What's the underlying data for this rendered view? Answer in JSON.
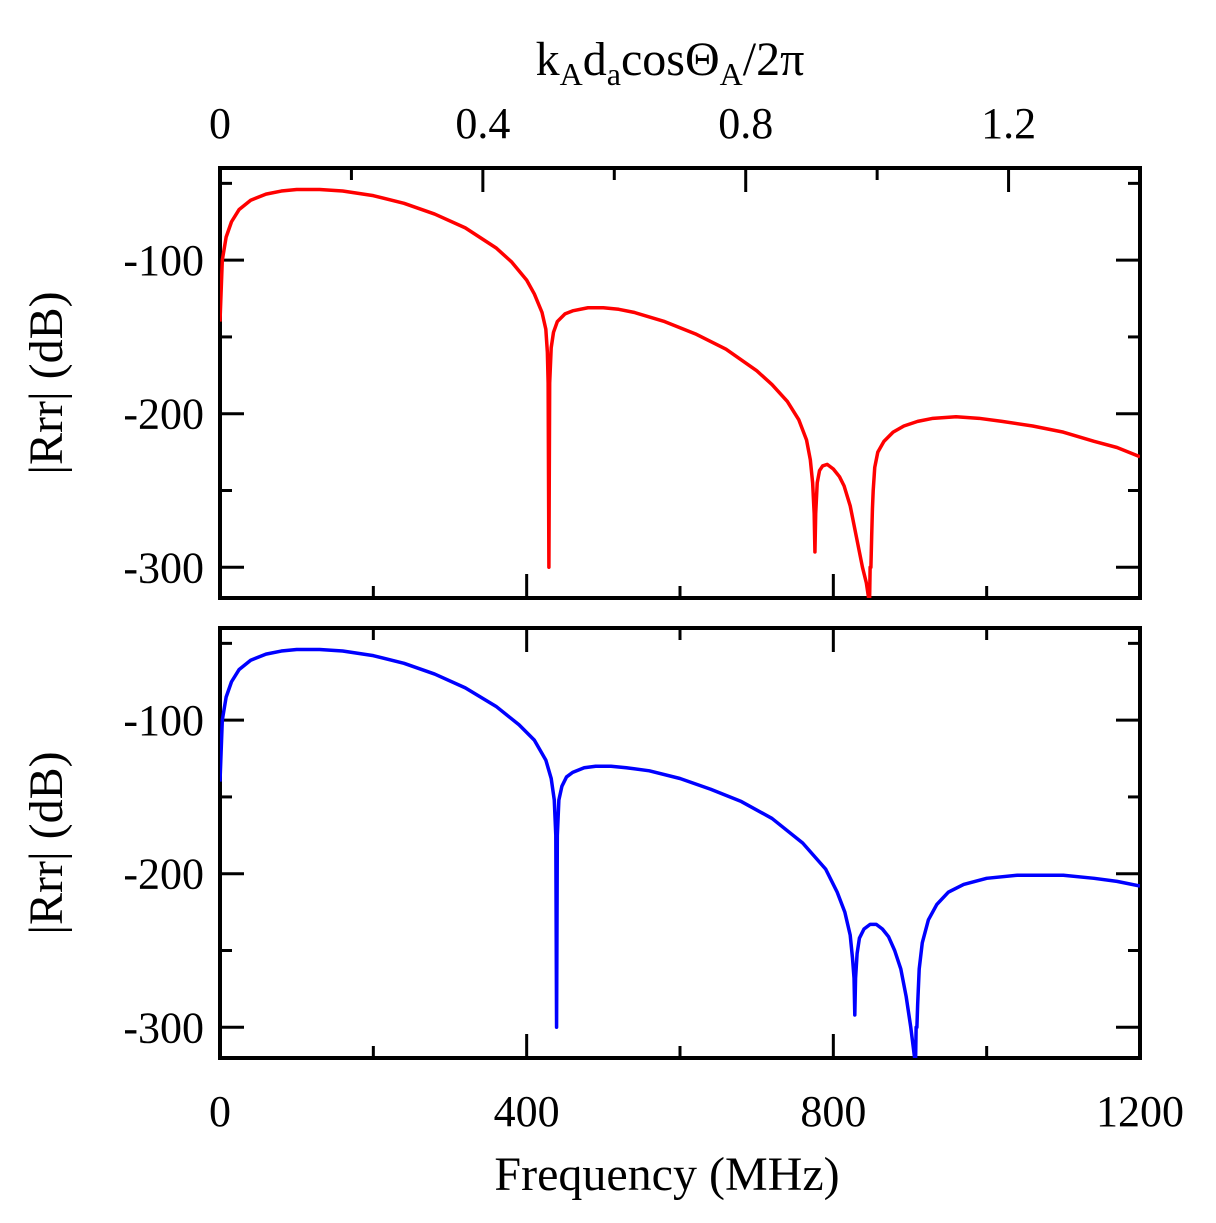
{
  "chart_data": [
    {
      "type": "line",
      "panel": "top",
      "top_axis": {
        "label_parts": [
          "k",
          "A",
          "d",
          "a",
          "cosΘ",
          "A",
          "/2π"
        ],
        "ticks": [
          0,
          0.4,
          0.8,
          1.2
        ],
        "tick_labels": [
          "0",
          "0.4",
          "0.8",
          "1.2"
        ],
        "range": [
          0,
          1.4
        ]
      },
      "xlim": [
        0,
        1200
      ],
      "ylim": [
        -320,
        -40
      ],
      "ylabel": "|Rrr| (dB)",
      "y_ticks": [
        -100,
        -200,
        -300
      ],
      "y_tick_labels": [
        "-100",
        "-200",
        "-300"
      ],
      "series": [
        {
          "name": "top",
          "color": "#ff0000",
          "x": [
            0,
            3,
            8,
            15,
            25,
            40,
            60,
            80,
            100,
            130,
            160,
            200,
            240,
            280,
            320,
            360,
            380,
            400,
            410,
            420,
            425,
            427,
            428,
            429,
            430,
            432,
            435,
            440,
            450,
            460,
            480,
            500,
            520,
            540,
            580,
            620,
            660,
            700,
            720,
            740,
            755,
            765,
            770,
            773,
            775,
            776,
            777,
            779,
            782,
            786,
            792,
            800,
            808,
            814,
            822,
            830,
            838,
            843,
            846,
            847,
            848,
            849,
            850,
            851,
            852,
            854,
            858,
            866,
            878,
            892,
            910,
            930,
            960,
            990,
            1020,
            1060,
            1100,
            1140,
            1170,
            1200
          ],
          "values": [
            -140,
            -100,
            -85,
            -75,
            -67,
            -61,
            -57,
            -55,
            -54,
            -54,
            -55,
            -58,
            -63,
            -70,
            -79,
            -92,
            -101,
            -113,
            -122,
            -134,
            -145,
            -160,
            -180,
            -300,
            -180,
            -157,
            -147,
            -140,
            -135,
            -133,
            -131,
            -131,
            -132,
            -134,
            -140,
            -148,
            -158,
            -172,
            -181,
            -192,
            -204,
            -217,
            -230,
            -245,
            -265,
            -290,
            -265,
            -245,
            -237,
            -234,
            -233,
            -236,
            -241,
            -247,
            -260,
            -280,
            -300,
            -310,
            -320,
            -330,
            -300,
            -300,
            -280,
            -262,
            -250,
            -235,
            -225,
            -218,
            -212,
            -208,
            -205,
            -203,
            -202,
            -203,
            -205,
            -208,
            -212,
            -218,
            -222,
            -228
          ]
        }
      ]
    },
    {
      "type": "line",
      "panel": "bottom",
      "xlabel": "Frequency (MHz)",
      "x_ticks": [
        0,
        400,
        800,
        1200
      ],
      "x_tick_labels": [
        "0",
        "400",
        "800",
        "1200"
      ],
      "xlim": [
        0,
        1200
      ],
      "ylim": [
        -320,
        -40
      ],
      "ylabel": "|Rrr| (dB)",
      "y_ticks": [
        -100,
        -200,
        -300
      ],
      "y_tick_labels": [
        "-100",
        "-200",
        "-300"
      ],
      "series": [
        {
          "name": "bottom",
          "color": "#0000ff",
          "x": [
            0,
            3,
            8,
            15,
            25,
            40,
            60,
            80,
            100,
            130,
            160,
            200,
            240,
            280,
            320,
            360,
            390,
            410,
            425,
            432,
            436,
            438,
            439,
            440,
            442,
            446,
            452,
            460,
            475,
            490,
            510,
            530,
            560,
            600,
            640,
            680,
            720,
            760,
            790,
            805,
            815,
            822,
            825,
            827,
            828,
            829,
            831,
            834,
            840,
            848,
            856,
            864,
            872,
            880,
            888,
            895,
            901,
            904,
            906,
            907,
            908,
            909,
            910,
            912,
            916,
            924,
            935,
            950,
            970,
            1000,
            1040,
            1080,
            1100,
            1140,
            1170,
            1200
          ],
          "values": [
            -140,
            -100,
            -85,
            -75,
            -67,
            -61,
            -57,
            -55,
            -54,
            -54,
            -55,
            -58,
            -63,
            -70,
            -79,
            -91,
            -103,
            -113,
            -126,
            -138,
            -152,
            -175,
            -300,
            -175,
            -152,
            -143,
            -137,
            -134,
            -131,
            -130,
            -130,
            -131,
            -133,
            -138,
            -145,
            -153,
            -164,
            -180,
            -197,
            -212,
            -225,
            -240,
            -255,
            -268,
            -292,
            -268,
            -252,
            -242,
            -236,
            -233,
            -233,
            -236,
            -241,
            -250,
            -262,
            -280,
            -300,
            -312,
            -320,
            -330,
            -300,
            -300,
            -285,
            -262,
            -245,
            -230,
            -220,
            -212,
            -207,
            -203,
            -201,
            -201,
            -201,
            -203,
            -205,
            -208
          ]
        }
      ]
    }
  ]
}
